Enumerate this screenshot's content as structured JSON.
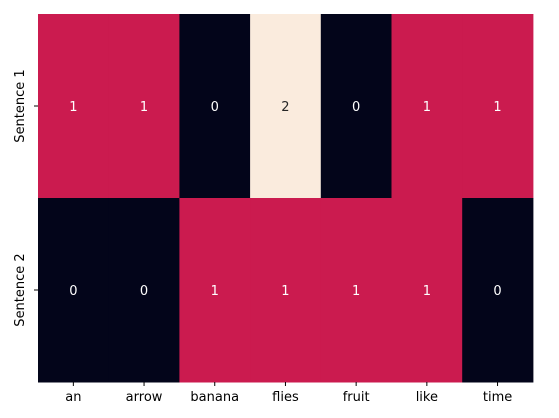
{
  "chart_data": {
    "type": "heatmap",
    "title": "",
    "xlabel": "",
    "ylabel": "",
    "x_categories": [
      "an",
      "arrow",
      "banana",
      "flies",
      "fruit",
      "like",
      "time"
    ],
    "y_categories": [
      "Sentence 1",
      "Sentence 2"
    ],
    "values": [
      [
        1,
        1,
        0,
        2,
        0,
        1,
        1
      ],
      [
        0,
        0,
        1,
        1,
        1,
        1,
        0
      ]
    ],
    "value_range": [
      0,
      2
    ],
    "annotated": true,
    "colorbar": false,
    "colors": {
      "0": "#03051a",
      "1": "#cb1b4f",
      "2": "#faebdd"
    },
    "annotation_colors": {
      "0": "#ffffff",
      "1": "#ffffff",
      "2": "#262626"
    }
  }
}
